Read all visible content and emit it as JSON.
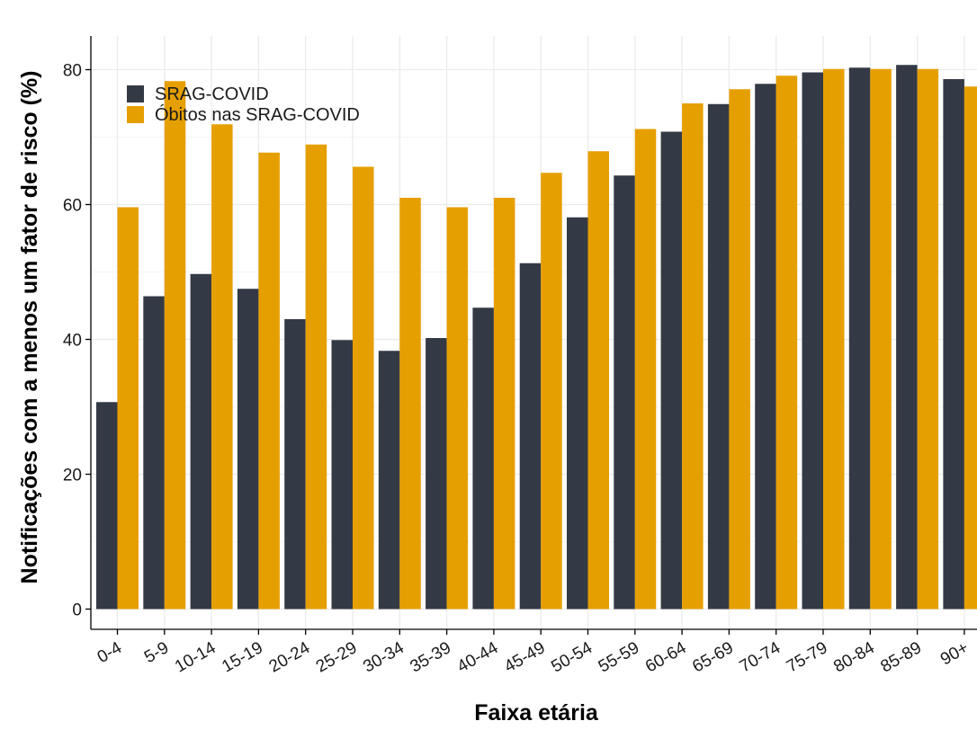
{
  "chart_data": {
    "type": "bar",
    "title": "",
    "xlabel": "Faixa etária",
    "ylabel": "Notificações com a menos um fator de risco (%)",
    "ylim": [
      -3,
      85
    ],
    "yticks": [
      0,
      20,
      40,
      60,
      80
    ],
    "grid": true,
    "legend_position": "top-left",
    "categories": [
      "0-4",
      "5-9",
      "10-14",
      "15-19",
      "20-24",
      "25-29",
      "30-34",
      "35-39",
      "40-44",
      "45-49",
      "50-54",
      "55-59",
      "60-64",
      "65-69",
      "70-74",
      "75-79",
      "80-84",
      "85-89",
      "90+"
    ],
    "series": [
      {
        "name": "SRAG-COVID",
        "color": "#343a45",
        "values": [
          30.7,
          46.4,
          49.7,
          47.5,
          43.0,
          39.9,
          38.3,
          40.2,
          44.7,
          51.3,
          58.1,
          64.3,
          70.8,
          74.9,
          77.9,
          79.6,
          80.3,
          80.7,
          78.6
        ]
      },
      {
        "name": "Óbitos nas SRAG-COVID",
        "color": "#e69f00",
        "values": [
          59.6,
          78.3,
          71.9,
          67.7,
          68.9,
          65.6,
          61.0,
          59.6,
          61.0,
          64.7,
          67.9,
          71.2,
          75.0,
          77.1,
          79.1,
          80.1,
          80.1,
          80.1,
          77.5
        ]
      }
    ]
  }
}
